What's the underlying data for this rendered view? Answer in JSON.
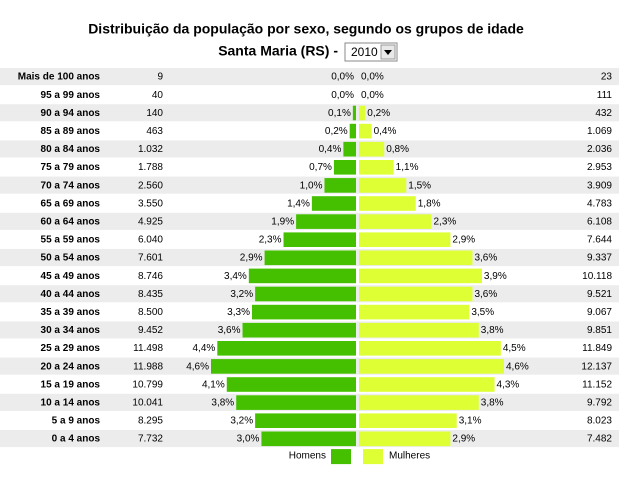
{
  "chart_data": {
    "type": "pyramid",
    "title": "Distribuição da população por sexo, segundo os grupos de idade",
    "subtitle": "Santa Maria (RS) -",
    "year": "2010",
    "categories": [
      "Mais de 100 anos",
      "95 a 99 anos",
      "90 a 94 anos",
      "85 a 89 anos",
      "80 a 84 anos",
      "75 a 79 anos",
      "70 a 74 anos",
      "65 a 69 anos",
      "60 a 64 anos",
      "55 a 59 anos",
      "50 a 54 anos",
      "45 a 49 anos",
      "40 a 44 anos",
      "35 a 39 anos",
      "30 a 34 anos",
      "25 a 29 anos",
      "20 a 24 anos",
      "15 a 19 anos",
      "10 a 14 anos",
      "5 a 9 anos",
      "0 a 4 anos"
    ],
    "series": [
      {
        "name": "Homens",
        "color": "#44c000",
        "values": [
          0.0,
          0.0,
          0.1,
          0.2,
          0.4,
          0.7,
          1.0,
          1.4,
          1.9,
          2.3,
          2.9,
          3.4,
          3.2,
          3.3,
          3.6,
          4.4,
          4.6,
          4.1,
          3.8,
          3.2,
          3.0
        ],
        "value_labels": [
          "0,0%",
          "0,0%",
          "0,1%",
          "0,2%",
          "0,4%",
          "0,7%",
          "1,0%",
          "1,4%",
          "1,9%",
          "2,3%",
          "2,9%",
          "3,4%",
          "3,2%",
          "3,3%",
          "3,6%",
          "4,4%",
          "4,6%",
          "4,1%",
          "3,8%",
          "3,2%",
          "3,0%"
        ],
        "counts": [
          "9",
          "40",
          "140",
          "463",
          "1.032",
          "1.788",
          "2.560",
          "3.550",
          "4.925",
          "6.040",
          "7.601",
          "8.746",
          "8.435",
          "8.500",
          "9.452",
          "11.498",
          "11.988",
          "10.799",
          "10.041",
          "8.295",
          "7.732"
        ]
      },
      {
        "name": "Mulheres",
        "color": "#ddff33",
        "values": [
          0.0,
          0.0,
          0.2,
          0.4,
          0.8,
          1.1,
          1.5,
          1.8,
          2.3,
          2.9,
          3.6,
          3.9,
          3.6,
          3.5,
          3.8,
          4.5,
          4.6,
          4.3,
          3.8,
          3.1,
          2.9
        ],
        "value_labels": [
          "0,0%",
          "0,0%",
          "0,2%",
          "0,4%",
          "0,8%",
          "1,1%",
          "1,5%",
          "1,8%",
          "2,3%",
          "2,9%",
          "3,6%",
          "3,9%",
          "3,6%",
          "3,5%",
          "3,8%",
          "4,5%",
          "4,6%",
          "4,3%",
          "3,8%",
          "3,1%",
          "2,9%"
        ],
        "counts": [
          "23",
          "111",
          "432",
          "1.069",
          "2.036",
          "2.953",
          "3.909",
          "4.783",
          "6.108",
          "7.644",
          "9.337",
          "10.118",
          "9.521",
          "9.067",
          "9.851",
          "11.849",
          "12.137",
          "11.152",
          "9.792",
          "8.023",
          "7.482"
        ]
      }
    ]
  }
}
